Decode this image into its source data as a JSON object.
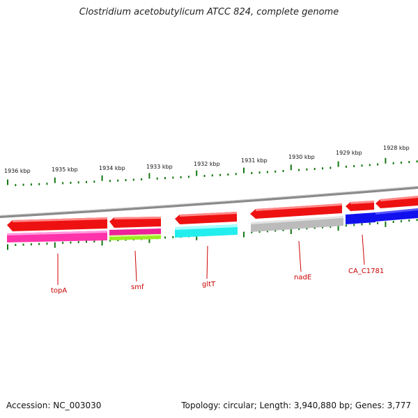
{
  "title": "Clostridium acetobutylicum ATCC 824, complete genome",
  "footer": {
    "accession": "Accession: NC_003030",
    "topology": "Topology: circular; Length: 3,940,880 bp; Genes: 3,777"
  },
  "colors": {
    "backbone": "#8a8a8a",
    "tick": "#117711",
    "label": "#cc0000",
    "cds": "#ee1111"
  },
  "ticks": [
    {
      "label": "1936 kbp"
    },
    {
      "label": "1935 kbp"
    },
    {
      "label": "1934 kbp"
    },
    {
      "label": "1933 kbp"
    },
    {
      "label": "1932 kbp"
    },
    {
      "label": "1931 kbp"
    },
    {
      "label": "1930 kbp"
    },
    {
      "label": "1929 kbp"
    },
    {
      "label": "1928 kbp"
    }
  ],
  "genes": [
    {
      "name": "topA",
      "fill": "#ff33aa"
    },
    {
      "name": "smf",
      "fill": "#ee2299"
    },
    {
      "name": "gltT",
      "fill": "#22eeee"
    },
    {
      "name": "nadE",
      "fill": "#bbbbbb"
    },
    {
      "name": "CA_C1781",
      "fill": "#1111ee"
    }
  ]
}
